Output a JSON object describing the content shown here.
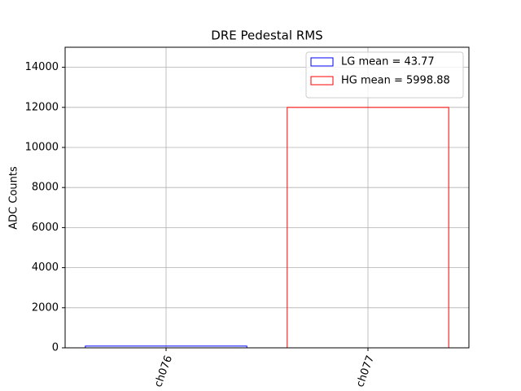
{
  "chart_data": {
    "type": "bar",
    "title": "DRE Pedestal RMS",
    "y_label": "ADC Counts",
    "categories": [
      "ch076",
      "ch077"
    ],
    "series": [
      {
        "name": "LG mean = 43.77",
        "color": "#0000ff",
        "values": [
          87.54,
          0
        ]
      },
      {
        "name": "HG mean = 5998.88",
        "color": "#ff0000",
        "values": [
          0,
          11997.76
        ]
      }
    ],
    "ylim": [
      0,
      15000
    ],
    "yticks": [
      0,
      2000,
      4000,
      6000,
      8000,
      10000,
      12000,
      14000
    ],
    "grid": true,
    "legend": "upper right",
    "filled": false
  }
}
